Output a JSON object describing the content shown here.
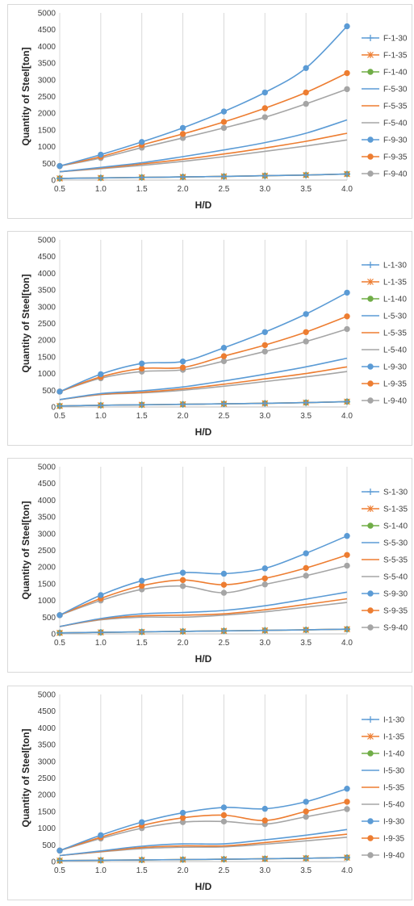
{
  "chart_data": [
    {
      "type": "line",
      "xlabel": "H/D",
      "ylabel": "Quantity of Steel[ton]",
      "ylim": [
        0,
        5000
      ],
      "yticks": [
        0,
        500,
        1000,
        1500,
        2000,
        2500,
        3000,
        3500,
        4000,
        4500,
        5000
      ],
      "x": [
        "0.5",
        "1.0",
        "1.5",
        "2.0",
        "2.5",
        "3.0",
        "3.5",
        "4.0"
      ],
      "grid": "vertical",
      "legend": "right",
      "series": [
        {
          "name": "F-1-30",
          "color": "#5b9bd5",
          "marker": "plus",
          "values": [
            50,
            65,
            80,
            95,
            110,
            130,
            150,
            180
          ]
        },
        {
          "name": "F-1-35",
          "color": "#ed7d31",
          "marker": "star",
          "values": [
            50,
            65,
            80,
            95,
            110,
            130,
            150,
            180
          ]
        },
        {
          "name": "F-1-40",
          "color": "#70ad47",
          "marker": "circle",
          "values": [
            50,
            65,
            80,
            95,
            110,
            130,
            150,
            180
          ]
        },
        {
          "name": "F-5-30",
          "color": "#5b9bd5",
          "marker": "dash",
          "values": [
            250,
            380,
            520,
            700,
            900,
            1120,
            1400,
            1800
          ]
        },
        {
          "name": "F-5-35",
          "color": "#ed7d31",
          "marker": "dash",
          "values": [
            250,
            360,
            480,
            620,
            780,
            960,
            1160,
            1400
          ]
        },
        {
          "name": "F-5-40",
          "color": "#a5a5a5",
          "marker": "dash",
          "values": [
            250,
            340,
            440,
            560,
            700,
            860,
            1020,
            1200
          ]
        },
        {
          "name": "F-9-30",
          "color": "#5b9bd5",
          "marker": "dot",
          "values": [
            420,
            760,
            1140,
            1560,
            2050,
            2620,
            3350,
            4600
          ]
        },
        {
          "name": "F-9-35",
          "color": "#ed7d31",
          "marker": "dot",
          "values": [
            420,
            700,
            1050,
            1380,
            1740,
            2150,
            2620,
            3200
          ]
        },
        {
          "name": "F-9-40",
          "color": "#a5a5a5",
          "marker": "dot",
          "values": [
            420,
            660,
            970,
            1260,
            1560,
            1880,
            2280,
            2720
          ]
        }
      ]
    },
    {
      "type": "line",
      "xlabel": "H/D",
      "ylabel": "Quantity of Steel[ton]",
      "ylim": [
        0,
        5000
      ],
      "yticks": [
        0,
        500,
        1000,
        1500,
        2000,
        2500,
        3000,
        3500,
        4000,
        4500,
        5000
      ],
      "x": [
        "0.5",
        "1.0",
        "1.5",
        "2.0",
        "2.5",
        "3.0",
        "3.5",
        "4.0"
      ],
      "grid": "vertical",
      "legend": "right",
      "series": [
        {
          "name": "L-1-30",
          "color": "#5b9bd5",
          "marker": "plus",
          "values": [
            30,
            50,
            65,
            80,
            95,
            110,
            130,
            160
          ]
        },
        {
          "name": "L-1-35",
          "color": "#ed7d31",
          "marker": "star",
          "values": [
            30,
            50,
            65,
            80,
            95,
            110,
            130,
            160
          ]
        },
        {
          "name": "L-1-40",
          "color": "#70ad47",
          "marker": "circle",
          "values": [
            30,
            50,
            65,
            80,
            95,
            110,
            130,
            160
          ]
        },
        {
          "name": "L-5-30",
          "color": "#5b9bd5",
          "marker": "dash",
          "values": [
            220,
            400,
            480,
            600,
            780,
            980,
            1200,
            1460
          ]
        },
        {
          "name": "L-5-35",
          "color": "#ed7d31",
          "marker": "dash",
          "values": [
            220,
            380,
            440,
            540,
            680,
            840,
            1000,
            1200
          ]
        },
        {
          "name": "L-5-40",
          "color": "#a5a5a5",
          "marker": "dash",
          "values": [
            220,
            370,
            420,
            500,
            620,
            760,
            900,
            1060
          ]
        },
        {
          "name": "L-9-30",
          "color": "#5b9bd5",
          "marker": "dot",
          "values": [
            460,
            980,
            1300,
            1360,
            1770,
            2240,
            2780,
            3420
          ]
        },
        {
          "name": "L-9-35",
          "color": "#ed7d31",
          "marker": "dot",
          "values": [
            460,
            900,
            1150,
            1180,
            1520,
            1850,
            2240,
            2710
          ]
        },
        {
          "name": "L-9-40",
          "color": "#a5a5a5",
          "marker": "dot",
          "values": [
            460,
            860,
            1060,
            1110,
            1370,
            1660,
            1960,
            2330
          ]
        }
      ]
    },
    {
      "type": "line",
      "xlabel": "H/D",
      "ylabel": "Quantity of Steel[ton]",
      "ylim": [
        0,
        5000
      ],
      "yticks": [
        0,
        500,
        1000,
        1500,
        2000,
        2500,
        3000,
        3500,
        4000,
        4500,
        5000
      ],
      "x": [
        "0.5",
        "1.0",
        "1.5",
        "2.0",
        "2.5",
        "3.0",
        "3.5",
        "4.0"
      ],
      "grid": "vertical",
      "legend": "right",
      "series": [
        {
          "name": "S-1-30",
          "color": "#5b9bd5",
          "marker": "plus",
          "values": [
            30,
            45,
            60,
            75,
            90,
            105,
            120,
            140
          ]
        },
        {
          "name": "S-1-35",
          "color": "#ed7d31",
          "marker": "star",
          "values": [
            30,
            45,
            60,
            75,
            90,
            105,
            120,
            140
          ]
        },
        {
          "name": "S-1-40",
          "color": "#70ad47",
          "marker": "circle",
          "values": [
            30,
            45,
            60,
            75,
            90,
            105,
            120,
            140
          ]
        },
        {
          "name": "S-5-30",
          "color": "#5b9bd5",
          "marker": "dash",
          "values": [
            220,
            460,
            600,
            640,
            700,
            840,
            1040,
            1250
          ]
        },
        {
          "name": "S-5-35",
          "color": "#ed7d31",
          "marker": "dash",
          "values": [
            220,
            440,
            540,
            560,
            600,
            720,
            880,
            1050
          ]
        },
        {
          "name": "S-5-40",
          "color": "#a5a5a5",
          "marker": "dash",
          "values": [
            220,
            420,
            500,
            500,
            560,
            660,
            800,
            940
          ]
        },
        {
          "name": "S-9-30",
          "color": "#5b9bd5",
          "marker": "dot",
          "values": [
            560,
            1160,
            1590,
            1830,
            1800,
            1960,
            2410,
            2930
          ]
        },
        {
          "name": "S-9-35",
          "color": "#ed7d31",
          "marker": "dot",
          "values": [
            560,
            1060,
            1440,
            1610,
            1470,
            1660,
            1970,
            2360
          ]
        },
        {
          "name": "S-9-40",
          "color": "#a5a5a5",
          "marker": "dot",
          "values": [
            560,
            1000,
            1330,
            1430,
            1230,
            1480,
            1740,
            2040
          ]
        }
      ]
    },
    {
      "type": "line",
      "xlabel": "H/D",
      "ylabel": "Quantity of Steel[ton]",
      "ylim": [
        0,
        5000
      ],
      "yticks": [
        0,
        500,
        1000,
        1500,
        2000,
        2500,
        3000,
        3500,
        4000,
        4500,
        5000
      ],
      "x": [
        "0.5",
        "1.0",
        "1.5",
        "2.0",
        "2.5",
        "3.0",
        "3.5",
        "4.0"
      ],
      "grid": "vertical",
      "legend": "right",
      "series": [
        {
          "name": "I-1-30",
          "color": "#5b9bd5",
          "marker": "plus",
          "values": [
            30,
            40,
            50,
            60,
            70,
            85,
            100,
            120
          ]
        },
        {
          "name": "I-1-35",
          "color": "#ed7d31",
          "marker": "star",
          "values": [
            30,
            40,
            50,
            60,
            70,
            85,
            100,
            120
          ]
        },
        {
          "name": "I-1-40",
          "color": "#70ad47",
          "marker": "circle",
          "values": [
            30,
            40,
            50,
            60,
            70,
            85,
            100,
            120
          ]
        },
        {
          "name": "I-5-30",
          "color": "#5b9bd5",
          "marker": "dash",
          "values": [
            180,
            320,
            460,
            530,
            530,
            650,
            790,
            960
          ]
        },
        {
          "name": "I-5-35",
          "color": "#ed7d31",
          "marker": "dash",
          "values": [
            180,
            300,
            420,
            470,
            470,
            570,
            690,
            820
          ]
        },
        {
          "name": "I-5-40",
          "color": "#a5a5a5",
          "marker": "dash",
          "values": [
            180,
            290,
            390,
            430,
            440,
            520,
            620,
            730
          ]
        },
        {
          "name": "I-9-30",
          "color": "#5b9bd5",
          "marker": "dot",
          "values": [
            330,
            790,
            1180,
            1460,
            1620,
            1580,
            1790,
            2180
          ]
        },
        {
          "name": "I-9-35",
          "color": "#ed7d31",
          "marker": "dot",
          "values": [
            330,
            730,
            1080,
            1310,
            1390,
            1230,
            1500,
            1790
          ]
        },
        {
          "name": "I-9-40",
          "color": "#a5a5a5",
          "marker": "dot",
          "values": [
            330,
            690,
            1000,
            1180,
            1200,
            1120,
            1340,
            1570
          ]
        }
      ]
    }
  ]
}
